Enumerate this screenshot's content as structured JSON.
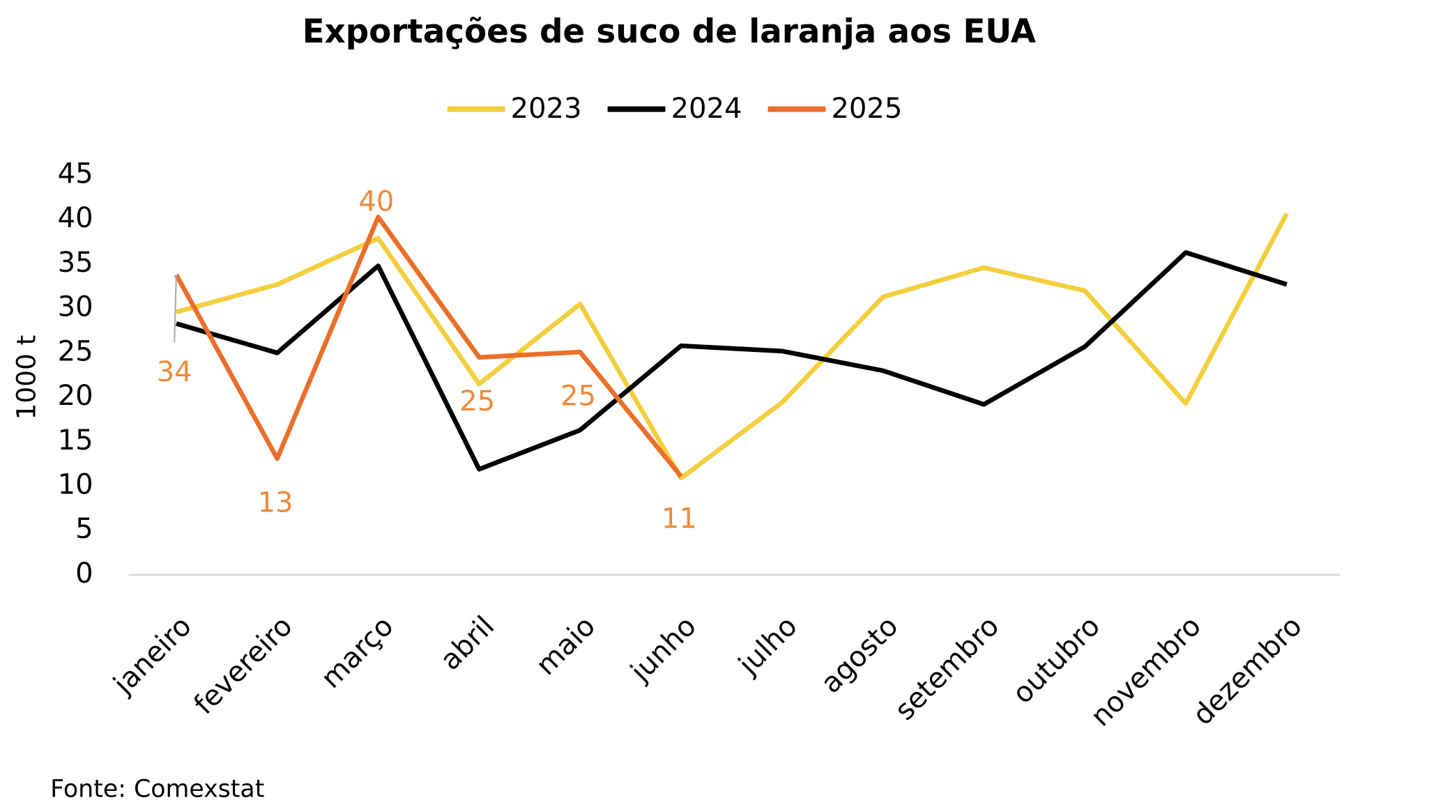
{
  "chart_data": {
    "type": "line",
    "title": "Exportações de suco de laranja aos EUA",
    "y_label": "1000 t",
    "source": "Fonte: Comexstat",
    "categories": [
      "janeiro",
      "fevereiro",
      "março",
      "abril",
      "maio",
      "junho",
      "julho",
      "agosto",
      "setembro",
      "outubro",
      "novembro",
      "dezembro"
    ],
    "series": [
      {
        "name": "2023",
        "color": "#f4cf3d",
        "values": [
          29.6,
          32.7,
          37.9,
          21.5,
          30.5,
          10.9,
          19.4,
          31.3,
          34.6,
          32.0,
          19.3,
          40.7
        ]
      },
      {
        "name": "2024",
        "color": "#000000",
        "values": [
          28.3,
          25.0,
          34.8,
          11.9,
          16.3,
          25.8,
          25.2,
          23.0,
          19.2,
          25.7,
          36.3,
          32.7
        ]
      },
      {
        "name": "2025",
        "color": "#ea6f2a",
        "values": [
          33.8,
          13.1,
          40.3,
          24.5,
          25.1,
          11.1,
          null,
          null,
          null,
          null,
          null,
          null
        ],
        "value_labels": [
          "34",
          "13",
          "40",
          "25",
          "25",
          "11",
          null,
          null,
          null,
          null,
          null,
          null
        ],
        "label_color": "#ed8a3a"
      }
    ],
    "ylim": [
      0,
      45
    ],
    "yticks": [
      0,
      5,
      10,
      15,
      20,
      25,
      30,
      35,
      40,
      45
    ],
    "legend": "top"
  }
}
